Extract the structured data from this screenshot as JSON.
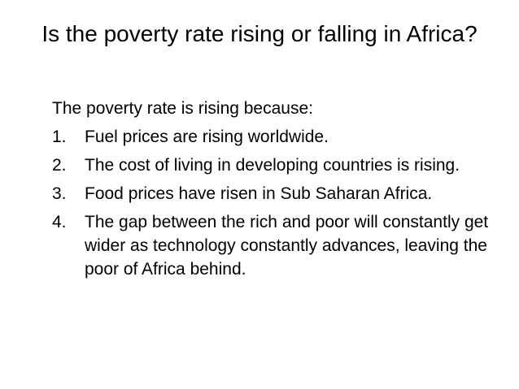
{
  "title": "Is the poverty rate rising or falling in Africa?",
  "intro": "The poverty rate is rising because:",
  "items": [
    {
      "number": "1.",
      "text": "Fuel prices are rising worldwide."
    },
    {
      "number": "2.",
      "text": "The cost of living in developing countries is rising."
    },
    {
      "number": "3.",
      "text": "Food prices have risen in Sub Saharan Africa."
    },
    {
      "number": "4.",
      "text": "The gap between the rich and poor will constantly get wider as technology constantly advances, leaving the poor of Africa behind."
    }
  ]
}
